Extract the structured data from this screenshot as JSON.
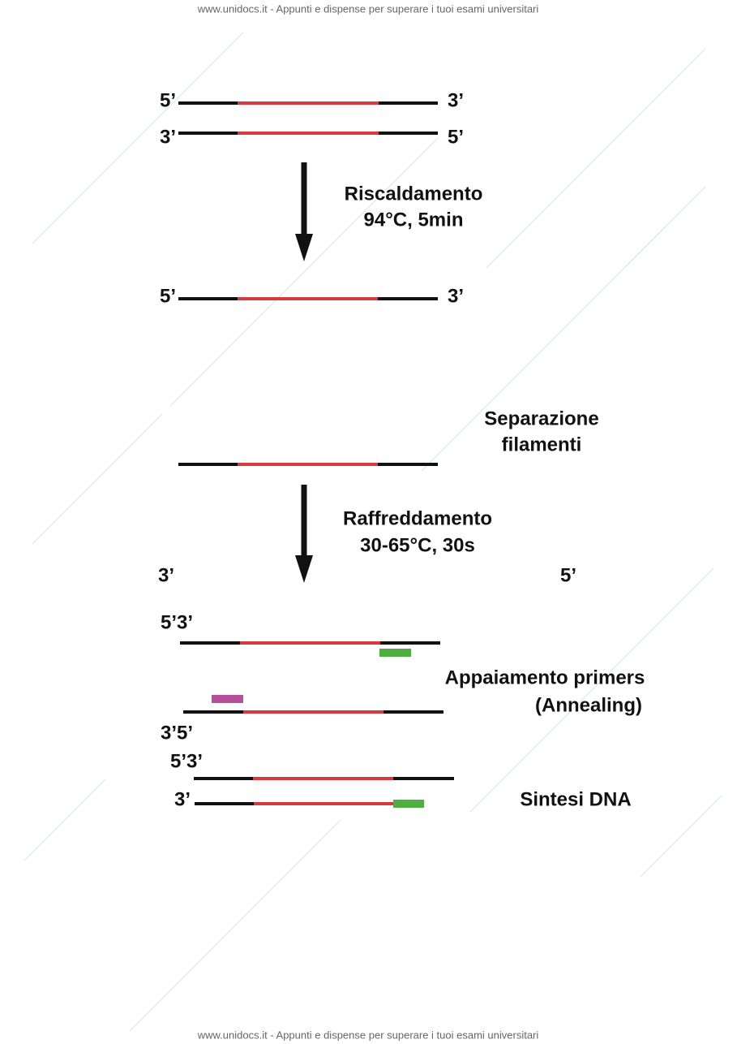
{
  "header": {
    "text": "www.unidocs.it - Appunti e dispense per superare i tuoi esami universitari"
  },
  "footer": {
    "text": "www.unidocs.it - Appunti e dispense per superare i tuoi esami universitari"
  },
  "labels": [
    "5’",
    "3’",
    "3’",
    "5’",
    "Riscaldamento",
    "94°C, 5min",
    "5’",
    "3’",
    "Separazione",
    "filamenti",
    "Raffreddamento",
    "30-65°C, 30s",
    "3’",
    "5’",
    "5’3’",
    "Appaiamento primers",
    "(Annealing)",
    "3’5’",
    "5’3’",
    "3’",
    "Sintesi DNA"
  ]
}
